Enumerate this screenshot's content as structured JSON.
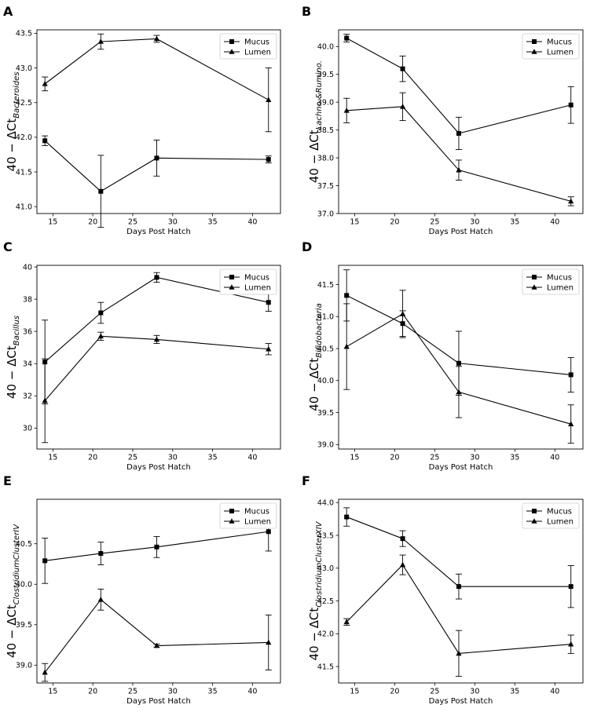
{
  "figure": {
    "xlabel": "Days Post Hatch",
    "legend": {
      "mucus": "Mucus",
      "lumen": "Lumen",
      "placement": "top-right"
    }
  },
  "chart_data": [
    {
      "panel": "A",
      "type": "line",
      "ylabel_prefix": "40 − ΔCt",
      "ylabel_subscript": "Bacteroides",
      "xlabel": "Days Post Hatch",
      "xlim": [
        13,
        43.5
      ],
      "ylim": [
        40.9,
        43.55
      ],
      "xticks": [
        15,
        20,
        25,
        30,
        35,
        40
      ],
      "yticks": [
        41.0,
        41.5,
        42.0,
        42.5,
        43.0,
        43.5
      ],
      "x": [
        14,
        21,
        28,
        42
      ],
      "series": [
        {
          "name": "Mucus",
          "marker": "square",
          "values": [
            41.95,
            41.22,
            41.7,
            41.68
          ],
          "errors": [
            0.07,
            0.52,
            0.26,
            0.05
          ]
        },
        {
          "name": "Lumen",
          "marker": "triangle",
          "values": [
            42.77,
            43.38,
            43.42,
            42.54
          ],
          "errors": [
            0.1,
            0.11,
            0.05,
            0.46
          ]
        }
      ]
    },
    {
      "panel": "B",
      "type": "line",
      "ylabel_prefix": "40 − ΔCt",
      "ylabel_subscript": "Lachno.&Rumino.",
      "xlabel": "Days Post Hatch",
      "xlim": [
        13,
        43.5
      ],
      "ylim": [
        37.0,
        40.3
      ],
      "xticks": [
        15,
        20,
        25,
        30,
        35,
        40
      ],
      "yticks": [
        37.0,
        37.5,
        38.0,
        38.5,
        39.0,
        39.5,
        40.0
      ],
      "x": [
        14,
        21,
        28,
        42
      ],
      "series": [
        {
          "name": "Mucus",
          "marker": "square",
          "values": [
            40.15,
            39.6,
            38.44,
            38.95
          ],
          "errors": [
            0.07,
            0.23,
            0.29,
            0.33
          ]
        },
        {
          "name": "Lumen",
          "marker": "triangle",
          "values": [
            38.85,
            38.92,
            37.78,
            37.22
          ],
          "errors": [
            0.22,
            0.25,
            0.18,
            0.08
          ]
        }
      ]
    },
    {
      "panel": "C",
      "type": "line",
      "ylabel_prefix": "40 − ΔCt",
      "ylabel_subscript": "Bacillus",
      "xlabel": "Days Post Hatch",
      "xlim": [
        13,
        43.5
      ],
      "ylim": [
        28.7,
        40.1
      ],
      "xticks": [
        15,
        20,
        25,
        30,
        35,
        40
      ],
      "yticks": [
        30,
        32,
        34,
        36,
        38,
        40
      ],
      "x": [
        14,
        21,
        28,
        42
      ],
      "series": [
        {
          "name": "Mucus",
          "marker": "square",
          "values": [
            34.1,
            37.15,
            39.35,
            37.8
          ],
          "errors": [
            2.6,
            0.65,
            0.3,
            0.55
          ]
        },
        {
          "name": "Lumen",
          "marker": "triangle",
          "values": [
            31.7,
            35.7,
            35.5,
            34.9
          ],
          "errors": [
            2.6,
            0.25,
            0.25,
            0.35
          ]
        }
      ]
    },
    {
      "panel": "D",
      "type": "line",
      "ylabel_prefix": "40 − ΔCt",
      "ylabel_subscript": "Bifidobacteria",
      "xlabel": "Days Post Hatch",
      "xlim": [
        13,
        43.5
      ],
      "ylim": [
        38.93,
        41.8
      ],
      "xticks": [
        15,
        20,
        25,
        30,
        35,
        40
      ],
      "yticks": [
        39.0,
        39.5,
        40.0,
        40.5,
        41.0,
        41.5
      ],
      "x": [
        14,
        21,
        28,
        42
      ],
      "series": [
        {
          "name": "Mucus",
          "marker": "square",
          "values": [
            41.33,
            40.89,
            40.27,
            40.09
          ],
          "errors": [
            0.4,
            0.2,
            0.5,
            0.27
          ]
        },
        {
          "name": "Lumen",
          "marker": "triangle",
          "values": [
            40.53,
            41.04,
            39.82,
            39.32
          ],
          "errors": [
            0.67,
            0.37,
            0.4,
            0.3
          ]
        }
      ]
    },
    {
      "panel": "E",
      "type": "line",
      "ylabel_prefix": "40 − ΔCt",
      "ylabel_subscript": "ClostridiumClusterIV",
      "xlabel": "Days Post Hatch",
      "xlim": [
        13,
        43.5
      ],
      "ylim": [
        38.78,
        41.05
      ],
      "xticks": [
        15,
        20,
        25,
        30,
        35,
        40
      ],
      "yticks": [
        39.0,
        39.5,
        40.0,
        40.5
      ],
      "x": [
        14,
        21,
        28,
        42
      ],
      "series": [
        {
          "name": "Mucus",
          "marker": "square",
          "values": [
            40.29,
            40.38,
            40.46,
            40.65
          ],
          "errors": [
            0.28,
            0.14,
            0.13,
            0.24
          ]
        },
        {
          "name": "Lumen",
          "marker": "triangle",
          "values": [
            38.91,
            39.81,
            39.24,
            39.28
          ],
          "errors": [
            0.11,
            0.13,
            0.02,
            0.34
          ]
        }
      ]
    },
    {
      "panel": "F",
      "type": "line",
      "ylabel_prefix": "40 − ΔCt",
      "ylabel_subscript": "ClostridiumClusterXIV",
      "xlabel": "Days Post Hatch",
      "xlim": [
        13,
        43.5
      ],
      "ylim": [
        41.25,
        44.05
      ],
      "xticks": [
        15,
        20,
        25,
        30,
        35,
        40
      ],
      "yticks": [
        41.5,
        42.0,
        42.5,
        43.0,
        43.5,
        44.0
      ],
      "x": [
        14,
        21,
        28,
        42
      ],
      "series": [
        {
          "name": "Mucus",
          "marker": "square",
          "values": [
            43.78,
            43.45,
            42.72,
            42.72
          ],
          "errors": [
            0.14,
            0.12,
            0.19,
            0.32
          ]
        },
        {
          "name": "Lumen",
          "marker": "triangle",
          "values": [
            42.18,
            43.05,
            41.7,
            41.84
          ],
          "errors": [
            0.05,
            0.15,
            0.35,
            0.14
          ]
        }
      ]
    }
  ]
}
